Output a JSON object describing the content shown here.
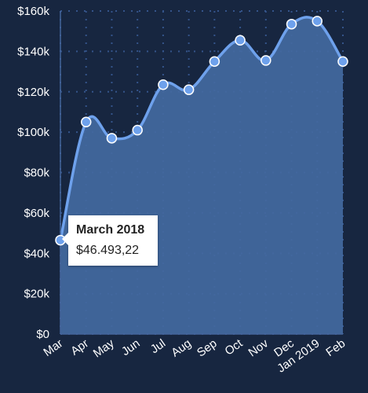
{
  "colors": {
    "background": "#172640",
    "area_fill": "#43699f",
    "line": "#6ea1ec",
    "point_fill": "#6ea1ec",
    "point_stroke": "#ffffff",
    "grid_dot": "#34548a",
    "axis_text": "#ffffff"
  },
  "chart_data": {
    "type": "area",
    "title": "",
    "xlabel": "",
    "ylabel": "",
    "ylim": [
      0,
      160000
    ],
    "grid": true,
    "categories": [
      "Mar",
      "Apr",
      "May",
      "Jun",
      "Jul",
      "Aug",
      "Sep",
      "Oct",
      "Nov",
      "Dec",
      "Jan 2019",
      "Feb"
    ],
    "values": [
      46493.22,
      105000,
      97000,
      101000,
      123500,
      121000,
      135000,
      145500,
      135500,
      153500,
      155000,
      135000
    ],
    "y_ticks": [
      "$0",
      "$20k",
      "$40k",
      "$60k",
      "$80k",
      "$100k",
      "$120k",
      "$140k",
      "$160k"
    ],
    "y_tick_values": [
      0,
      20000,
      40000,
      60000,
      80000,
      100000,
      120000,
      140000,
      160000
    ]
  },
  "tooltip": {
    "title": "March 2018",
    "value": "$46.493,22"
  }
}
